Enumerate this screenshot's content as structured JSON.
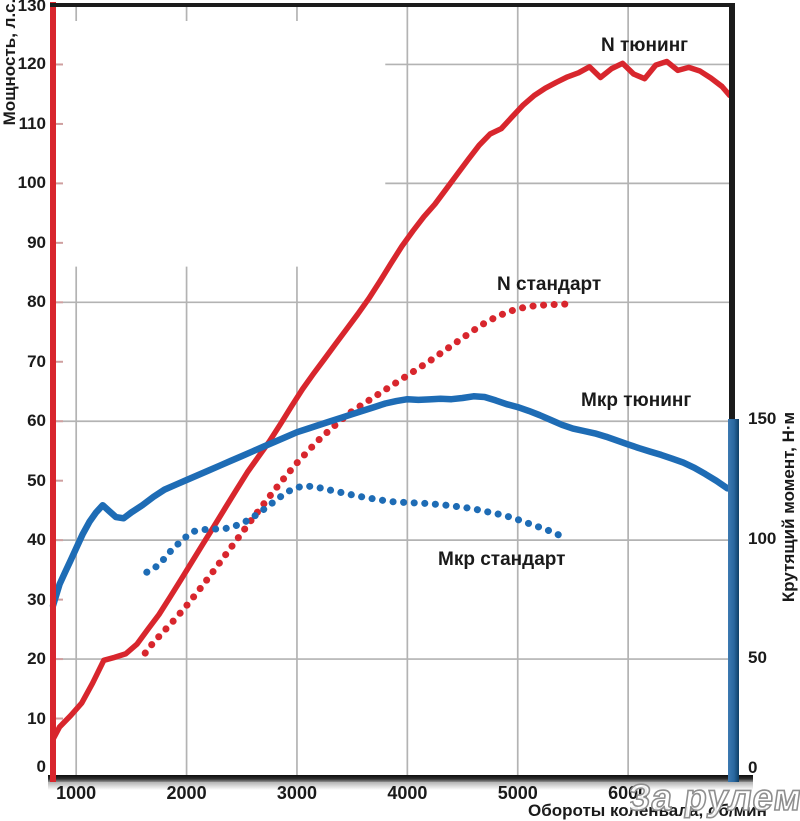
{
  "watermark": {
    "text": "За рулем"
  },
  "colors": {
    "power_red": "#d8262d",
    "torque_blue": "#1e6cb5",
    "grid": "#b3b3b3",
    "frame_dark": "#1b1b1b",
    "left_tick_nub": "#cf9f9f"
  },
  "chart_data": {
    "type": "line",
    "title": "",
    "xlabel": "Обороты коленвала, об/мин",
    "ylabel_left": "Мощность, л.с.",
    "ylabel_right": "Крутящий момент, Н·м",
    "x_range_rpm": [
      790,
      6950
    ],
    "y_left_range": [
      0,
      130
    ],
    "y_right_range": [
      0,
      323
    ],
    "x_ticks": [
      1000,
      2000,
      3000,
      4000,
      5000,
      6000
    ],
    "y_left_ticks": [
      0,
      10,
      20,
      30,
      40,
      50,
      60,
      70,
      80,
      90,
      100,
      110,
      120,
      130
    ],
    "y_right_ticks": [
      0,
      50,
      100,
      150
    ],
    "grid": {
      "h_lines_hp": [
        20,
        40,
        60,
        80
      ],
      "h_lines_short_hp": [
        100,
        120
      ],
      "h_short_start_rpm": 3800,
      "v_lines_full_rpm": [
        4000,
        5000,
        6000
      ],
      "v_lines_short_rpm": [
        1000,
        2000,
        3000
      ],
      "v_short_top_hp": 86
    },
    "legend_position": "inline-labels",
    "series": [
      {
        "name": "N тюнинг",
        "axis": "left",
        "unit": "л.с.",
        "line": "solid",
        "color": "#d8262d",
        "points": [
          [
            790,
            6.5
          ],
          [
            850,
            8.6
          ],
          [
            950,
            10.5
          ],
          [
            1050,
            12.6
          ],
          [
            1150,
            16
          ],
          [
            1250,
            19.8
          ],
          [
            1350,
            20.3
          ],
          [
            1450,
            20.9
          ],
          [
            1550,
            22.5
          ],
          [
            1650,
            25
          ],
          [
            1750,
            27.5
          ],
          [
            1850,
            30.4
          ],
          [
            1950,
            33.4
          ],
          [
            2050,
            36.4
          ],
          [
            2150,
            39.4
          ],
          [
            2250,
            42.4
          ],
          [
            2350,
            45.4
          ],
          [
            2450,
            48.4
          ],
          [
            2550,
            51.4
          ],
          [
            2650,
            54
          ],
          [
            2750,
            56.6
          ],
          [
            2850,
            59.5
          ],
          [
            2950,
            62.5
          ],
          [
            3050,
            65.4
          ],
          [
            3150,
            68
          ],
          [
            3250,
            70.5
          ],
          [
            3350,
            73
          ],
          [
            3450,
            75.5
          ],
          [
            3550,
            78
          ],
          [
            3650,
            80.6
          ],
          [
            3750,
            83.5
          ],
          [
            3850,
            86.5
          ],
          [
            3950,
            89.4
          ],
          [
            4050,
            92
          ],
          [
            4150,
            94.4
          ],
          [
            4250,
            96.5
          ],
          [
            4350,
            99
          ],
          [
            4450,
            101.5
          ],
          [
            4550,
            104
          ],
          [
            4650,
            106.4
          ],
          [
            4750,
            108.3
          ],
          [
            4850,
            109.2
          ],
          [
            4950,
            111.2
          ],
          [
            5050,
            113.2
          ],
          [
            5150,
            114.8
          ],
          [
            5250,
            116
          ],
          [
            5350,
            117
          ],
          [
            5450,
            117.9
          ],
          [
            5550,
            118.6
          ],
          [
            5650,
            119.6
          ],
          [
            5750,
            117.8
          ],
          [
            5850,
            119.3
          ],
          [
            5950,
            120.2
          ],
          [
            6050,
            118.4
          ],
          [
            6150,
            117.6
          ],
          [
            6250,
            119.9
          ],
          [
            6350,
            120.5
          ],
          [
            6450,
            119
          ],
          [
            6550,
            119.5
          ],
          [
            6650,
            118.9
          ],
          [
            6750,
            117.7
          ],
          [
            6850,
            116.3
          ],
          [
            6920,
            114.8
          ]
        ]
      },
      {
        "name": "N стандарт",
        "axis": "left",
        "unit": "л.с.",
        "line": "dotted",
        "color": "#d8262d",
        "points": [
          [
            1625,
            21
          ],
          [
            1700,
            22.8
          ],
          [
            1800,
            24.8
          ],
          [
            1900,
            26.8
          ],
          [
            2000,
            29
          ],
          [
            2100,
            31.3
          ],
          [
            2200,
            33.7
          ],
          [
            2300,
            36.2
          ],
          [
            2400,
            38.7
          ],
          [
            2500,
            41.2
          ],
          [
            2600,
            43.7
          ],
          [
            2700,
            46.1
          ],
          [
            2800,
            48.5
          ],
          [
            2900,
            50.8
          ],
          [
            3000,
            53
          ],
          [
            3100,
            55
          ],
          [
            3200,
            56.9
          ],
          [
            3300,
            58.6
          ],
          [
            3400,
            60.2
          ],
          [
            3500,
            61.7
          ],
          [
            3600,
            62.9
          ],
          [
            3700,
            64.1
          ],
          [
            3800,
            65.3
          ],
          [
            3900,
            66.5
          ],
          [
            4000,
            67.7
          ],
          [
            4100,
            68.9
          ],
          [
            4200,
            70.1
          ],
          [
            4300,
            71.4
          ],
          [
            4400,
            72.7
          ],
          [
            4500,
            74
          ],
          [
            4600,
            75.3
          ],
          [
            4700,
            76.5
          ],
          [
            4800,
            77.5
          ],
          [
            4900,
            78.3
          ],
          [
            5000,
            78.9
          ],
          [
            5100,
            79.3
          ],
          [
            5200,
            79.5
          ],
          [
            5300,
            79.6
          ],
          [
            5400,
            79.7
          ],
          [
            5500,
            79.7
          ]
        ]
      },
      {
        "name": "Мкр тюнинг",
        "axis": "right",
        "unit": "Н·м",
        "line": "solid",
        "color": "#1e6cb5",
        "points": [
          [
            790,
            72
          ],
          [
            850,
            81
          ],
          [
            900,
            86
          ],
          [
            950,
            91
          ],
          [
            1000,
            96
          ],
          [
            1060,
            102
          ],
          [
            1120,
            107
          ],
          [
            1180,
            111
          ],
          [
            1240,
            114
          ],
          [
            1300,
            111.5
          ],
          [
            1360,
            109
          ],
          [
            1430,
            108.5
          ],
          [
            1500,
            111
          ],
          [
            1600,
            114
          ],
          [
            1700,
            117.5
          ],
          [
            1800,
            120.5
          ],
          [
            1900,
            122.5
          ],
          [
            2000,
            124.5
          ],
          [
            2100,
            126.5
          ],
          [
            2200,
            128.5
          ],
          [
            2300,
            130.5
          ],
          [
            2400,
            132.5
          ],
          [
            2500,
            134.5
          ],
          [
            2600,
            136.5
          ],
          [
            2700,
            138.5
          ],
          [
            2800,
            140.5
          ],
          [
            2900,
            142.5
          ],
          [
            3000,
            144.5
          ],
          [
            3100,
            146
          ],
          [
            3200,
            147.5
          ],
          [
            3300,
            149
          ],
          [
            3400,
            150.5
          ],
          [
            3500,
            152
          ],
          [
            3600,
            153.5
          ],
          [
            3700,
            155
          ],
          [
            3800,
            156.5
          ],
          [
            3900,
            157.5
          ],
          [
            4000,
            158.3
          ],
          [
            4100,
            158
          ],
          [
            4200,
            158.2
          ],
          [
            4300,
            158.5
          ],
          [
            4400,
            158.3
          ],
          [
            4500,
            158.8
          ],
          [
            4600,
            159.5
          ],
          [
            4700,
            159.2
          ],
          [
            4800,
            157.8
          ],
          [
            4900,
            156.2
          ],
          [
            5000,
            155
          ],
          [
            5100,
            153.4
          ],
          [
            5200,
            151.6
          ],
          [
            5300,
            149.6
          ],
          [
            5400,
            147.6
          ],
          [
            5500,
            146
          ],
          [
            5600,
            145
          ],
          [
            5700,
            144
          ],
          [
            5800,
            142.6
          ],
          [
            5900,
            141
          ],
          [
            6000,
            139.4
          ],
          [
            6100,
            137.8
          ],
          [
            6200,
            136.4
          ],
          [
            6300,
            135
          ],
          [
            6400,
            133.4
          ],
          [
            6500,
            131.8
          ],
          [
            6600,
            129.6
          ],
          [
            6700,
            127
          ],
          [
            6800,
            124.2
          ],
          [
            6900,
            121
          ]
        ]
      },
      {
        "name": "Мкр стандарт",
        "axis": "right",
        "unit": "Н·м",
        "line": "dotted",
        "color": "#1e6cb5",
        "points": [
          [
            1640,
            86
          ],
          [
            1700,
            87.5
          ],
          [
            1760,
            89.5
          ],
          [
            1820,
            93
          ],
          [
            1880,
            96
          ],
          [
            1940,
            98.5
          ],
          [
            2000,
            101
          ],
          [
            2060,
            103
          ],
          [
            2150,
            103.8
          ],
          [
            2250,
            104
          ],
          [
            2350,
            104.2
          ],
          [
            2450,
            105.5
          ],
          [
            2550,
            107.5
          ],
          [
            2650,
            110.5
          ],
          [
            2750,
            114
          ],
          [
            2850,
            117.5
          ],
          [
            2950,
            120.5
          ],
          [
            3050,
            122
          ],
          [
            3150,
            121.8
          ],
          [
            3250,
            120.8
          ],
          [
            3350,
            119.8
          ],
          [
            3450,
            118.8
          ],
          [
            3550,
            117.8
          ],
          [
            3650,
            117
          ],
          [
            3750,
            116.2
          ],
          [
            3850,
            115.5
          ],
          [
            3950,
            115.2
          ],
          [
            4050,
            115
          ],
          [
            4150,
            114.8
          ],
          [
            4250,
            114.4
          ],
          [
            4350,
            114
          ],
          [
            4450,
            113.4
          ],
          [
            4550,
            112.8
          ],
          [
            4650,
            112
          ],
          [
            4750,
            111
          ],
          [
            4850,
            110
          ],
          [
            4950,
            108.8
          ],
          [
            5050,
            107.2
          ],
          [
            5150,
            105.5
          ],
          [
            5250,
            104
          ],
          [
            5350,
            102
          ],
          [
            5450,
            100
          ]
        ]
      }
    ]
  }
}
